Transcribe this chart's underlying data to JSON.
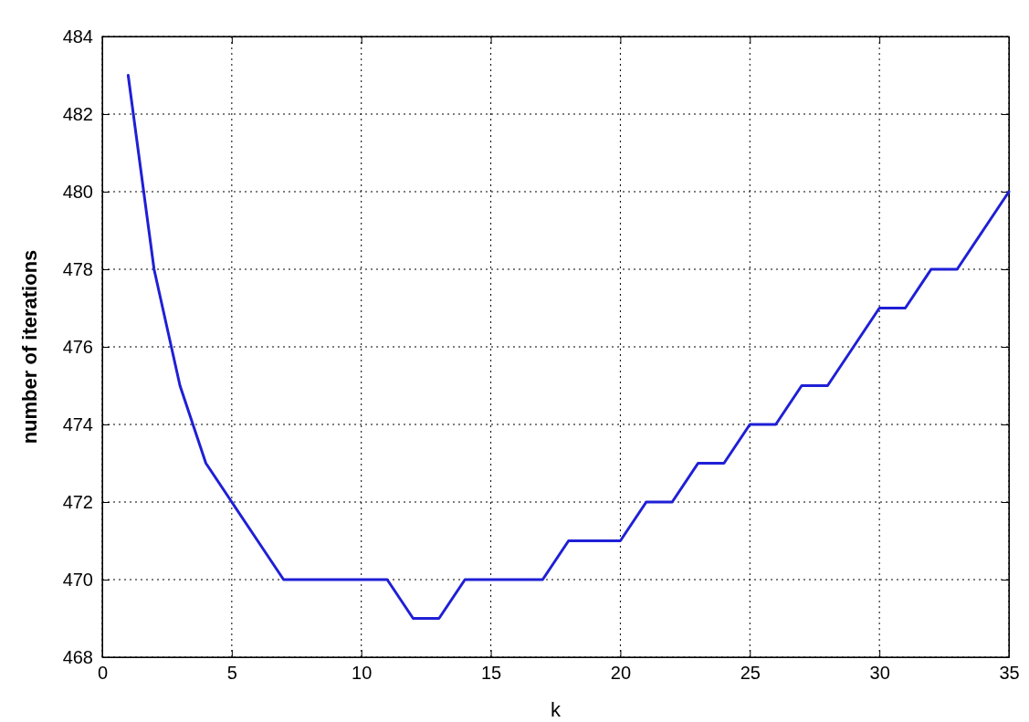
{
  "chart_data": {
    "type": "line",
    "xlabel": "k",
    "ylabel": "number of iterations",
    "x": [
      1,
      2,
      3,
      4,
      5,
      6,
      7,
      8,
      9,
      10,
      11,
      12,
      13,
      14,
      15,
      16,
      17,
      18,
      19,
      20,
      21,
      22,
      23,
      24,
      25,
      26,
      27,
      28,
      29,
      30,
      31,
      32,
      33,
      34,
      35
    ],
    "series": [
      {
        "color": "#1f1fd6",
        "values": [
          483,
          478,
          475,
          473,
          472,
          471,
          470,
          470,
          470,
          470,
          470,
          469,
          469,
          470,
          470,
          470,
          470,
          471,
          471,
          471,
          472,
          472,
          473,
          473,
          474,
          474,
          475,
          475,
          476,
          477,
          477,
          478,
          478,
          479,
          480
        ]
      }
    ],
    "xlim": [
      0,
      35
    ],
    "xticks": [
      0,
      5,
      10,
      15,
      20,
      25,
      30,
      35
    ],
    "ylim": [
      468,
      484
    ],
    "yticks": [
      468,
      470,
      472,
      474,
      476,
      478,
      480,
      482,
      484
    ],
    "grid": true,
    "line_style": "solid",
    "marker": "none"
  }
}
